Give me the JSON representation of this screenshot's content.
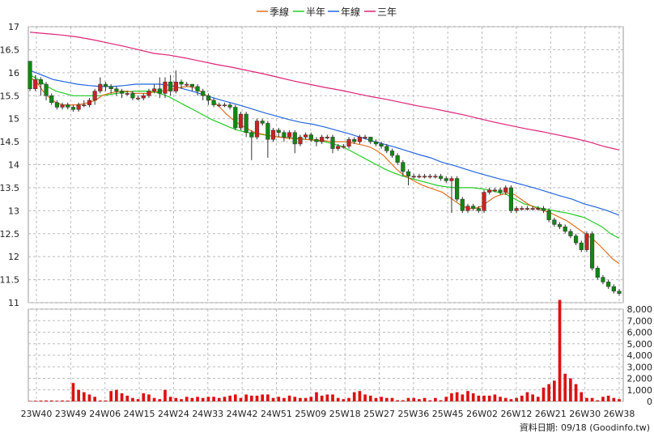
{
  "chart_data": {
    "type": "candlestick",
    "legend": [
      {
        "name": "季線",
        "color": "#e07020"
      },
      {
        "name": "半年",
        "color": "#22cc22"
      },
      {
        "name": "年線",
        "color": "#2266dd"
      },
      {
        "name": "三年",
        "color": "#dd2277"
      }
    ],
    "price_axis": {
      "ylim": [
        11,
        17
      ],
      "ticks": [
        "11",
        "11.5",
        "12",
        "12.5",
        "13",
        "13.5",
        "14",
        "14.5",
        "15",
        "15.5",
        "16",
        "16.5",
        "17"
      ]
    },
    "volume_axis": {
      "ylim": [
        0,
        8000
      ],
      "ticks": [
        "0",
        "1,000",
        "2,000",
        "3,000",
        "4,000",
        "5,000",
        "6,000",
        "7,000",
        "8,000"
      ]
    },
    "x_tick_labels": [
      "23W40",
      "23W49",
      "24W06",
      "24W15",
      "24W24",
      "24W33",
      "24W42",
      "24W51",
      "25W09",
      "25W18",
      "25W27",
      "25W36",
      "25W45",
      "26W02",
      "26W12",
      "26W21",
      "26W30",
      "26W38"
    ],
    "grid": true,
    "legend_position": "top",
    "credit": "資料日期: 09/18 (Goodinfo.tw)",
    "candles": [
      [
        16.25,
        15.65,
        16.25,
        15.6
      ],
      [
        15.65,
        15.85,
        15.95,
        15.6
      ],
      [
        15.85,
        15.75,
        15.9,
        15.5
      ],
      [
        15.75,
        15.5,
        15.8,
        15.4
      ],
      [
        15.5,
        15.35,
        15.55,
        15.3
      ],
      [
        15.35,
        15.25,
        15.4,
        15.2
      ],
      [
        15.25,
        15.3,
        15.35,
        15.2
      ],
      [
        15.3,
        15.25,
        15.35,
        15.2
      ],
      [
        15.25,
        15.2,
        15.3,
        15.15
      ],
      [
        15.2,
        15.3,
        15.35,
        15.15
      ],
      [
        15.3,
        15.3,
        15.4,
        15.25
      ],
      [
        15.3,
        15.4,
        15.45,
        15.25
      ],
      [
        15.4,
        15.6,
        15.65,
        15.3
      ],
      [
        15.6,
        15.75,
        15.9,
        15.55
      ],
      [
        15.75,
        15.7,
        15.8,
        15.6
      ],
      [
        15.7,
        15.65,
        15.75,
        15.55
      ],
      [
        15.65,
        15.6,
        15.7,
        15.5
      ],
      [
        15.6,
        15.55,
        15.65,
        15.45
      ],
      [
        15.55,
        15.55,
        15.6,
        15.5
      ],
      [
        15.55,
        15.45,
        15.6,
        15.4
      ],
      [
        15.45,
        15.45,
        15.5,
        15.4
      ],
      [
        15.45,
        15.5,
        15.55,
        15.4
      ],
      [
        15.5,
        15.6,
        15.65,
        15.45
      ],
      [
        15.6,
        15.65,
        15.75,
        15.55
      ],
      [
        15.65,
        15.55,
        15.9,
        15.45
      ],
      [
        15.55,
        15.8,
        15.9,
        15.45
      ],
      [
        15.8,
        15.6,
        15.95,
        15.5
      ],
      [
        15.6,
        15.8,
        16.05,
        15.55
      ],
      [
        15.8,
        15.75,
        15.85,
        15.65
      ],
      [
        15.75,
        15.75,
        15.8,
        15.7
      ],
      [
        15.75,
        15.7,
        15.75,
        15.6
      ],
      [
        15.7,
        15.6,
        15.75,
        15.5
      ],
      [
        15.6,
        15.5,
        15.65,
        15.4
      ],
      [
        15.5,
        15.4,
        15.55,
        15.3
      ],
      [
        15.4,
        15.3,
        15.45,
        15.25
      ],
      [
        15.3,
        15.3,
        15.35,
        15.25
      ],
      [
        15.3,
        15.3,
        15.35,
        15.25
      ],
      [
        15.3,
        15.25,
        15.35,
        15.2
      ],
      [
        15.25,
        14.8,
        15.3,
        14.75
      ],
      [
        14.8,
        15.1,
        15.15,
        14.75
      ],
      [
        15.1,
        14.7,
        15.15,
        14.6
      ],
      [
        14.7,
        14.6,
        14.75,
        14.1
      ],
      [
        14.6,
        14.95,
        15.0,
        14.55
      ],
      [
        14.95,
        14.9,
        15.0,
        14.85
      ],
      [
        14.9,
        14.55,
        14.95,
        14.15
      ],
      [
        14.55,
        14.75,
        14.8,
        14.5
      ],
      [
        14.75,
        14.7,
        14.8,
        14.6
      ],
      [
        14.7,
        14.6,
        14.75,
        14.5
      ],
      [
        14.6,
        14.7,
        14.75,
        14.55
      ],
      [
        14.7,
        14.45,
        14.75,
        14.25
      ],
      [
        14.45,
        14.6,
        14.65,
        14.4
      ],
      [
        14.6,
        14.65,
        14.7,
        14.55
      ],
      [
        14.65,
        14.55,
        14.7,
        14.5
      ],
      [
        14.55,
        14.5,
        14.6,
        14.4
      ],
      [
        14.5,
        14.6,
        14.65,
        14.45
      ],
      [
        14.6,
        14.6,
        14.65,
        14.55
      ],
      [
        14.6,
        14.35,
        14.65,
        14.25
      ],
      [
        14.35,
        14.4,
        14.45,
        14.3
      ],
      [
        14.4,
        14.4,
        14.45,
        14.35
      ],
      [
        14.4,
        14.55,
        14.6,
        14.35
      ],
      [
        14.55,
        14.5,
        14.6,
        14.45
      ],
      [
        14.5,
        14.6,
        14.65,
        14.45
      ],
      [
        14.6,
        14.6,
        14.65,
        14.55
      ],
      [
        14.6,
        14.5,
        14.6,
        14.45
      ],
      [
        14.5,
        14.45,
        14.55,
        14.4
      ],
      [
        14.45,
        14.4,
        14.5,
        14.35
      ],
      [
        14.4,
        14.3,
        14.45,
        14.25
      ],
      [
        14.3,
        14.2,
        14.35,
        14.15
      ],
      [
        14.2,
        14.05,
        14.25,
        14.0
      ],
      [
        14.05,
        13.85,
        14.1,
        13.75
      ],
      [
        13.85,
        13.75,
        13.9,
        13.55
      ],
      [
        13.75,
        13.75,
        13.8,
        13.7
      ],
      [
        13.75,
        13.75,
        13.8,
        13.7
      ],
      [
        13.75,
        13.75,
        13.8,
        13.7
      ],
      [
        13.75,
        13.75,
        13.8,
        13.7
      ],
      [
        13.75,
        13.75,
        13.8,
        13.7
      ],
      [
        13.75,
        13.7,
        13.8,
        13.65
      ],
      [
        13.7,
        13.65,
        13.75,
        13.6
      ],
      [
        13.65,
        13.7,
        13.75,
        12.95
      ],
      [
        13.7,
        13.25,
        13.75,
        13.2
      ],
      [
        13.25,
        13.0,
        13.3,
        12.95
      ],
      [
        13.0,
        13.1,
        13.15,
        12.95
      ],
      [
        13.1,
        13.05,
        13.15,
        13.0
      ],
      [
        13.05,
        13.0,
        13.1,
        12.95
      ],
      [
        13.0,
        13.4,
        13.45,
        12.95
      ],
      [
        13.4,
        13.45,
        13.5,
        13.35
      ],
      [
        13.45,
        13.45,
        13.5,
        13.4
      ],
      [
        13.45,
        13.4,
        13.5,
        13.35
      ],
      [
        13.4,
        13.5,
        13.55,
        13.35
      ],
      [
        13.5,
        13.0,
        13.55,
        12.95
      ],
      [
        13.0,
        13.05,
        13.1,
        12.95
      ],
      [
        13.05,
        13.05,
        13.1,
        13.0
      ],
      [
        13.05,
        13.05,
        13.1,
        13.0
      ],
      [
        13.05,
        13.05,
        13.1,
        13.0
      ],
      [
        13.05,
        13.05,
        13.1,
        13.0
      ],
      [
        13.05,
        13.0,
        13.1,
        12.95
      ],
      [
        13.0,
        12.8,
        13.05,
        12.75
      ],
      [
        12.8,
        12.7,
        12.85,
        12.65
      ],
      [
        12.7,
        12.65,
        12.75,
        12.6
      ],
      [
        12.65,
        12.55,
        12.7,
        12.5
      ],
      [
        12.55,
        12.45,
        12.6,
        12.4
      ],
      [
        12.45,
        12.3,
        12.5,
        12.25
      ],
      [
        12.3,
        12.15,
        12.35,
        12.1
      ],
      [
        12.15,
        12.5,
        12.55,
        12.1
      ],
      [
        12.5,
        11.75,
        12.55,
        11.7
      ],
      [
        11.75,
        11.55,
        11.8,
        11.5
      ],
      [
        11.55,
        11.45,
        11.6,
        11.4
      ],
      [
        11.45,
        11.35,
        11.5,
        11.3
      ],
      [
        11.35,
        11.25,
        11.4,
        11.2
      ],
      [
        11.25,
        11.2,
        11.3,
        11.15
      ]
    ],
    "volume": [
      40,
      60,
      70,
      80,
      80,
      60,
      80,
      70,
      1600,
      1000,
      800,
      600,
      400,
      80,
      80,
      900,
      1000,
      700,
      500,
      300,
      200,
      700,
      600,
      300,
      200,
      1000,
      400,
      300,
      200,
      400,
      300,
      400,
      300,
      400,
      400,
      300,
      400,
      500,
      600,
      300,
      600,
      500,
      500,
      600,
      600,
      300,
      400,
      300,
      500,
      400,
      300,
      300,
      400,
      800,
      500,
      600,
      600,
      300,
      200,
      300,
      800,
      900,
      600,
      500,
      300,
      400,
      300,
      300,
      100,
      100,
      300,
      300,
      200,
      300,
      100,
      300,
      100,
      400,
      700,
      800,
      600,
      900,
      700,
      500,
      500,
      500,
      600,
      400,
      300,
      200,
      300,
      500,
      800,
      600,
      400,
      1200,
      1500,
      1800,
      8800,
      2400,
      2000,
      1500,
      800,
      300,
      300,
      100,
      400,
      500,
      300,
      200
    ],
    "ma_quarter": [
      15.9,
      15.8,
      15.6,
      15.45,
      15.35,
      15.3,
      15.3,
      15.3,
      15.32,
      15.35,
      15.4,
      15.5,
      15.55,
      15.58,
      15.6,
      15.6,
      15.55,
      15.55,
      15.55,
      15.58,
      15.6,
      15.62,
      15.65,
      15.68,
      15.7,
      15.68,
      15.6,
      15.5,
      15.38,
      15.25,
      15.1,
      14.98,
      14.88,
      14.8,
      14.72,
      14.68,
      14.65,
      14.62,
      14.6,
      14.58,
      14.57,
      14.56,
      14.55,
      14.54,
      14.53,
      14.52,
      14.5,
      14.5,
      14.5,
      14.48,
      14.45,
      14.42,
      14.38,
      14.3,
      14.2,
      14.05,
      13.9,
      13.78,
      13.7,
      13.62,
      13.55,
      13.5,
      13.45,
      13.4,
      13.3,
      13.2,
      13.1,
      13.05,
      13.05,
      13.1,
      13.2,
      13.3,
      13.35,
      13.38,
      13.35,
      13.25,
      13.15,
      13.08,
      13.02,
      12.98,
      12.92,
      12.85,
      12.78,
      12.68,
      12.58,
      12.48,
      12.38,
      12.25,
      12.1,
      11.95,
      11.85
    ],
    "ma_half": [
      15.95,
      15.85,
      15.7,
      15.6,
      15.55,
      15.5,
      15.5,
      15.5,
      15.5,
      15.52,
      15.55,
      15.58,
      15.6,
      15.6,
      15.6,
      15.55,
      15.48,
      15.38,
      15.28,
      15.18,
      15.08,
      14.98,
      14.9,
      14.82,
      14.75,
      14.7,
      14.68,
      14.65,
      14.62,
      14.6,
      14.58,
      14.57,
      14.55,
      14.52,
      14.5,
      14.45,
      14.4,
      14.3,
      14.2,
      14.1,
      14.0,
      13.9,
      13.82,
      13.75,
      13.7,
      13.65,
      13.6,
      13.55,
      13.52,
      13.5,
      13.5,
      13.5,
      13.48,
      13.45,
      13.4,
      13.35,
      13.25,
      13.15,
      13.1,
      13.05,
      13.02,
      12.98,
      12.95,
      12.9,
      12.85,
      12.75,
      12.65,
      12.5,
      12.4
    ],
    "ma_year": [
      16.05,
      15.95,
      15.85,
      15.8,
      15.75,
      15.72,
      15.7,
      15.7,
      15.72,
      15.75,
      15.75,
      15.75,
      15.72,
      15.65,
      15.58,
      15.5,
      15.42,
      15.35,
      15.28,
      15.2,
      15.12,
      15.05,
      14.98,
      14.92,
      14.88,
      14.82,
      14.75,
      14.68,
      14.6,
      14.52,
      14.45,
      14.38,
      14.3,
      14.22,
      14.15,
      14.05,
      13.98,
      13.9,
      13.82,
      13.75,
      13.68,
      13.62,
      13.55,
      13.48,
      13.4,
      13.32,
      13.25,
      13.15,
      13.08,
      13.0,
      12.9
    ],
    "ma_3year": [
      16.88,
      16.85,
      16.82,
      16.78,
      16.72,
      16.65,
      16.58,
      16.5,
      16.42,
      16.38,
      16.32,
      16.25,
      16.18,
      16.12,
      16.05,
      15.98,
      15.9,
      15.82,
      15.75,
      15.68,
      15.62,
      15.55,
      15.48,
      15.42,
      15.35,
      15.28,
      15.22,
      15.15,
      15.08,
      15.0,
      14.92,
      14.85,
      14.78,
      14.72,
      14.65,
      14.58,
      14.5,
      14.4,
      14.32
    ]
  }
}
